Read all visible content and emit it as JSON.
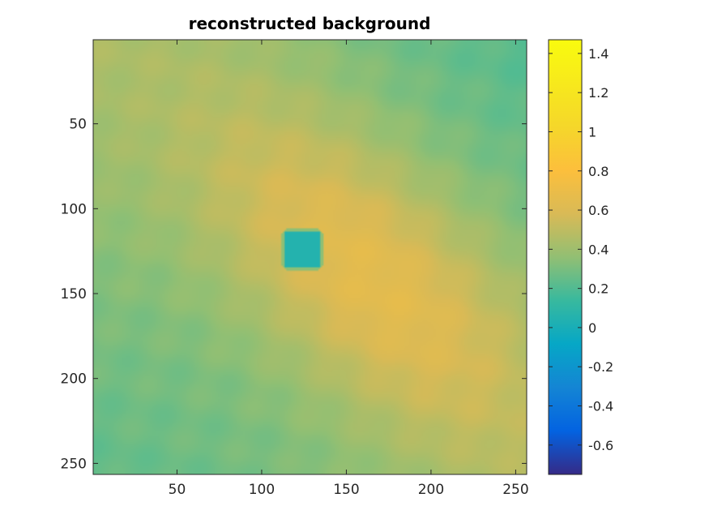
{
  "chart_data": {
    "type": "heatmap",
    "title": "reconstructed background",
    "xlabel": "",
    "ylabel": "",
    "x_range": [
      0.5,
      256.5
    ],
    "y_range": [
      0.5,
      256.5
    ],
    "y_direction": "reverse",
    "x_ticks": [
      50,
      100,
      150,
      200,
      250
    ],
    "x_tick_labels": [
      "50",
      "100",
      "150",
      "200",
      "250"
    ],
    "y_ticks": [
      50,
      100,
      150,
      200,
      250
    ],
    "y_tick_labels": [
      "50",
      "100",
      "150",
      "200",
      "250"
    ],
    "colormap": "parula",
    "colorbar": {
      "range": [
        -0.75,
        1.47
      ],
      "ticks": [
        1.4,
        1.2,
        1,
        0.8,
        0.6,
        0.4,
        0.2,
        0,
        -0.2,
        -0.4,
        -0.6
      ],
      "tick_labels": [
        "1.4",
        "1.2",
        "1",
        "0.8",
        "0.6",
        "0.4",
        "0.2",
        "0",
        "-0.2",
        "-0.4",
        "-0.6"
      ]
    },
    "field_description": {
      "peak_center": [
        165,
        140
      ],
      "peak_value": 0.62,
      "corner_values": {
        "top_left": 0.5,
        "top_right": 0.15,
        "bottom_left": 0.2,
        "bottom_right": 0.42
      },
      "inclusion": {
        "x": [
          112,
          136
        ],
        "y": [
          112,
          136
        ],
        "value": 0.05,
        "rim_value": 0.35
      }
    }
  }
}
